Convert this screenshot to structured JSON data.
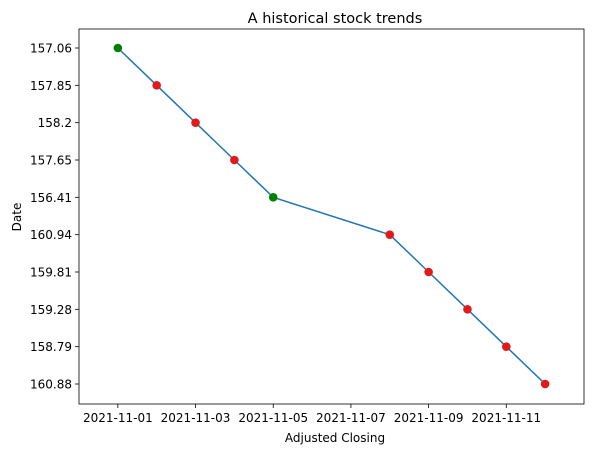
{
  "chart_data": {
    "type": "line",
    "title": "A historical stock trends",
    "xlabel": "Adjusted Closing",
    "ylabel": "Date",
    "x_ticks": [
      "2021-11-01",
      "2021-11-03",
      "2021-11-05",
      "2021-11-07",
      "2021-11-09",
      "2021-11-11"
    ],
    "y_categories": [
      "157.06",
      "157.85",
      "158.2",
      "157.65",
      "156.41",
      "160.94",
      "159.81",
      "159.28",
      "158.79",
      "160.88"
    ],
    "points": [
      {
        "x": "2021-11-01",
        "y": "157.06",
        "color": "#008000"
      },
      {
        "x": "2021-11-02",
        "y": "157.85",
        "color": "#e31a1c"
      },
      {
        "x": "2021-11-03",
        "y": "158.2",
        "color": "#e31a1c"
      },
      {
        "x": "2021-11-04",
        "y": "157.65",
        "color": "#e31a1c"
      },
      {
        "x": "2021-11-05",
        "y": "156.41",
        "color": "#008000"
      },
      {
        "x": "2021-11-08",
        "y": "160.94",
        "color": "#e31a1c"
      },
      {
        "x": "2021-11-09",
        "y": "159.81",
        "color": "#e31a1c"
      },
      {
        "x": "2021-11-10",
        "y": "159.28",
        "color": "#e31a1c"
      },
      {
        "x": "2021-11-11",
        "y": "158.79",
        "color": "#e31a1c"
      },
      {
        "x": "2021-11-12",
        "y": "160.88",
        "color": "#e31a1c"
      }
    ],
    "x_range": [
      "2021-10-31",
      "2021-11-13"
    ],
    "line_color": "#1f77b4",
    "grid": false,
    "legend": "none"
  }
}
